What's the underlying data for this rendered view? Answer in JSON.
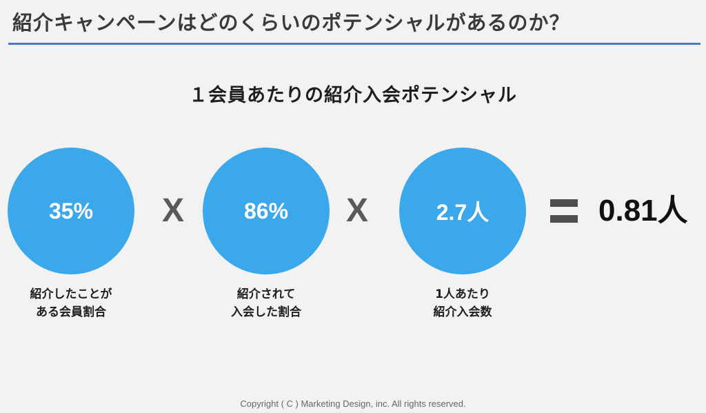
{
  "slide": {
    "title": "紹介キャンペーンはどのくらいのポテンシャルがあるのか？",
    "subtitle": "１会員あたりの紹介入会ポテンシャル"
  },
  "formula": {
    "terms": [
      {
        "value": "35%",
        "caption_lines": [
          "紹介したことが",
          "ある会員割合"
        ]
      },
      {
        "value": "86%",
        "caption_lines": [
          "紹介されて",
          "入会した割合"
        ]
      },
      {
        "value": "2.7人",
        "caption_lines": [
          "1人あたり",
          "紹介入会数"
        ]
      }
    ],
    "operators": [
      "X",
      "X"
    ],
    "result": "0.81人"
  },
  "footer": {
    "copyright": "Copyright ( C ) Marketing Design, inc. All rights reserved."
  },
  "colors": {
    "circle_fill": "#3aa8ea",
    "title_rule": "#4a78c8",
    "background": "#f2f2f2"
  }
}
